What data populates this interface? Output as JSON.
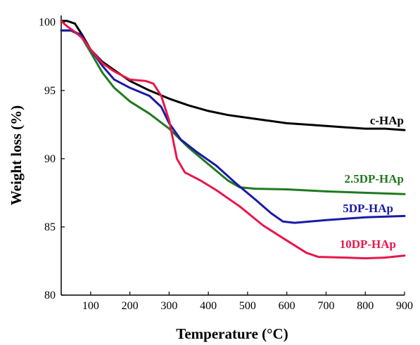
{
  "chart_data": {
    "type": "line",
    "title": "",
    "xlabel": "Temperature (°C)",
    "ylabel": "Weight loss (%)",
    "xlim": [
      25,
      900
    ],
    "ylim": [
      80,
      100.5
    ],
    "x_ticks": [
      100,
      200,
      300,
      400,
      500,
      600,
      700,
      800,
      900
    ],
    "y_ticks": [
      80,
      85,
      90,
      95,
      100
    ],
    "grid": false,
    "legend": "inline labels near line ends",
    "series": [
      {
        "name": "c-HAp",
        "color": "#000000",
        "points": [
          [
            25,
            100.1
          ],
          [
            40,
            100.1
          ],
          [
            60,
            99.9
          ],
          [
            80,
            99.0
          ],
          [
            100,
            98.0
          ],
          [
            130,
            97.1
          ],
          [
            160,
            96.5
          ],
          [
            200,
            95.7
          ],
          [
            250,
            95.0
          ],
          [
            300,
            94.4
          ],
          [
            350,
            93.9
          ],
          [
            400,
            93.5
          ],
          [
            450,
            93.2
          ],
          [
            500,
            93.0
          ],
          [
            550,
            92.8
          ],
          [
            600,
            92.6
          ],
          [
            650,
            92.5
          ],
          [
            700,
            92.4
          ],
          [
            750,
            92.3
          ],
          [
            800,
            92.2
          ],
          [
            850,
            92.2
          ],
          [
            900,
            92.1
          ]
        ]
      },
      {
        "name": "2.5DP-HAp",
        "color": "#1f7a1f",
        "points": [
          [
            25,
            99.4
          ],
          [
            50,
            99.4
          ],
          [
            75,
            99.0
          ],
          [
            100,
            97.8
          ],
          [
            130,
            96.3
          ],
          [
            160,
            95.2
          ],
          [
            200,
            94.2
          ],
          [
            250,
            93.3
          ],
          [
            300,
            92.2
          ],
          [
            350,
            90.8
          ],
          [
            400,
            89.6
          ],
          [
            450,
            88.4
          ],
          [
            480,
            87.9
          ],
          [
            520,
            87.8
          ],
          [
            600,
            87.75
          ],
          [
            700,
            87.6
          ],
          [
            800,
            87.5
          ],
          [
            900,
            87.4
          ]
        ]
      },
      {
        "name": "5DP-HAp",
        "color": "#1a1aa8",
        "points": [
          [
            25,
            99.4
          ],
          [
            50,
            99.4
          ],
          [
            75,
            99.1
          ],
          [
            100,
            98.0
          ],
          [
            130,
            96.8
          ],
          [
            160,
            95.8
          ],
          [
            200,
            95.2
          ],
          [
            250,
            94.6
          ],
          [
            280,
            93.8
          ],
          [
            300,
            92.6
          ],
          [
            330,
            91.4
          ],
          [
            370,
            90.5
          ],
          [
            420,
            89.5
          ],
          [
            470,
            88.2
          ],
          [
            520,
            87.0
          ],
          [
            560,
            86.0
          ],
          [
            590,
            85.4
          ],
          [
            620,
            85.3
          ],
          [
            700,
            85.5
          ],
          [
            800,
            85.7
          ],
          [
            900,
            85.8
          ]
        ]
      },
      {
        "name": "10DP-HAp",
        "color": "#e8174b",
        "points": [
          [
            25,
            100.1
          ],
          [
            40,
            99.7
          ],
          [
            60,
            99.3
          ],
          [
            80,
            98.8
          ],
          [
            100,
            98.0
          ],
          [
            130,
            97.0
          ],
          [
            160,
            96.4
          ],
          [
            200,
            95.8
          ],
          [
            240,
            95.7
          ],
          [
            260,
            95.5
          ],
          [
            280,
            94.6
          ],
          [
            300,
            92.8
          ],
          [
            320,
            90.0
          ],
          [
            340,
            89.0
          ],
          [
            380,
            88.4
          ],
          [
            420,
            87.7
          ],
          [
            480,
            86.5
          ],
          [
            540,
            85.1
          ],
          [
            600,
            84.0
          ],
          [
            650,
            83.1
          ],
          [
            680,
            82.8
          ],
          [
            750,
            82.75
          ],
          [
            800,
            82.7
          ],
          [
            850,
            82.75
          ],
          [
            900,
            82.9
          ]
        ]
      }
    ]
  }
}
